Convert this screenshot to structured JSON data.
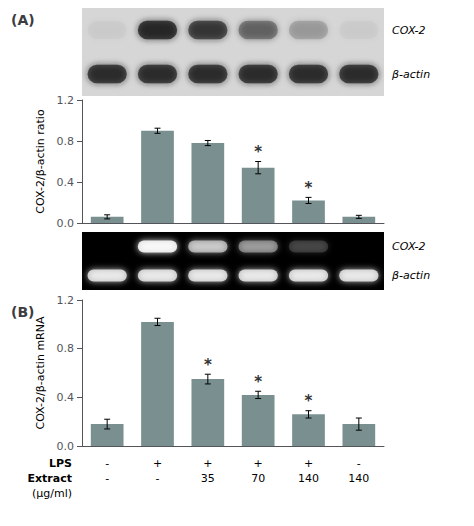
{
  "chart_data": [
    {
      "type": "western_blot",
      "title": "(A)",
      "bands": [
        {
          "label": "COX-2",
          "intensities": [
            0.04,
            1.0,
            0.85,
            0.55,
            0.22,
            0.04
          ]
        },
        {
          "label": "β-actin",
          "intensities": [
            0.95,
            0.95,
            0.95,
            0.95,
            0.95,
            0.95
          ]
        }
      ]
    },
    {
      "type": "bar",
      "ylabel": "COX-2/β-actin ratio",
      "categories": [
        null,
        null,
        null,
        null,
        null,
        null
      ],
      "values": [
        0.06,
        0.9,
        0.78,
        0.54,
        0.22,
        0.06
      ],
      "errors": [
        0.02,
        0.025,
        0.025,
        0.06,
        0.03,
        0.015
      ],
      "significance": [
        null,
        null,
        null,
        "*",
        "*",
        null
      ],
      "color": "#7a9090",
      "ylim": [
        0.0,
        1.2
      ],
      "yticks": [
        {
          "value": 0.0,
          "label": "0.0"
        },
        0.4,
        0.8,
        1.2
      ],
      "grid": false
    },
    {
      "type": "gel",
      "bands": [
        {
          "label": "COX-2",
          "intensities": [
            0.0,
            1.0,
            0.65,
            0.45,
            0.18,
            0.0
          ]
        },
        {
          "label": "β-actin",
          "intensities": [
            0.85,
            0.85,
            0.85,
            0.85,
            0.85,
            0.85
          ]
        }
      ]
    },
    {
      "type": "bar",
      "title": "(B)",
      "ylabel": "COX-2/β-actin mRNA",
      "category_rows": [
        {
          "title": "LPS",
          "labels": [
            "-",
            "+",
            "+",
            "+",
            "+",
            "-"
          ]
        },
        {
          "title": "Extract",
          "labels": [
            "-",
            "-",
            "35",
            "70",
            "140",
            "140"
          ]
        }
      ],
      "category_unit": "(μg/ml)",
      "values": [
        0.18,
        1.02,
        0.55,
        0.42,
        0.26,
        0.18
      ],
      "errors": [
        0.04,
        0.03,
        0.04,
        0.03,
        0.03,
        0.05
      ],
      "significance": [
        null,
        null,
        "*",
        "*",
        "*",
        null
      ],
      "color": "#7a9090",
      "ylim": [
        0.0,
        1.2
      ],
      "yticks": [
        {
          "value": 0.0,
          "label": "0.0"
        },
        0.4,
        0.8,
        1.2
      ],
      "grid": false
    }
  ]
}
